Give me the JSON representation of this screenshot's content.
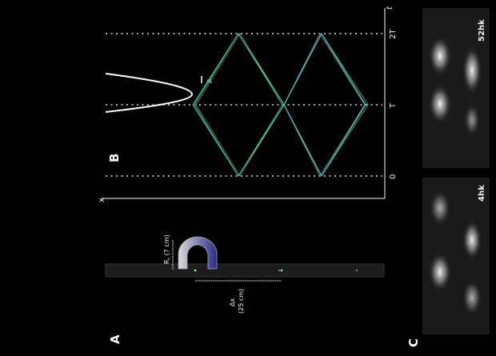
{
  "panels": {
    "a": {
      "label": "A",
      "radius_label": "R, (7 cm)",
      "dx_label": "Δx",
      "dx_value": "(25 cm)"
    },
    "b": {
      "label": "B",
      "x_axis": "x",
      "t_axis": "t",
      "ticks": [
        "0",
        "T",
        "2T"
      ],
      "rx_label": "R",
      "colors": {
        "cyan": "#3fd6d0",
        "green": "#3aa876",
        "orange": "#8a6a30",
        "gray": "#888888"
      }
    },
    "c": {
      "label": "C",
      "images": [
        {
          "label": "52hk"
        },
        {
          "label": "4hk"
        }
      ]
    }
  }
}
